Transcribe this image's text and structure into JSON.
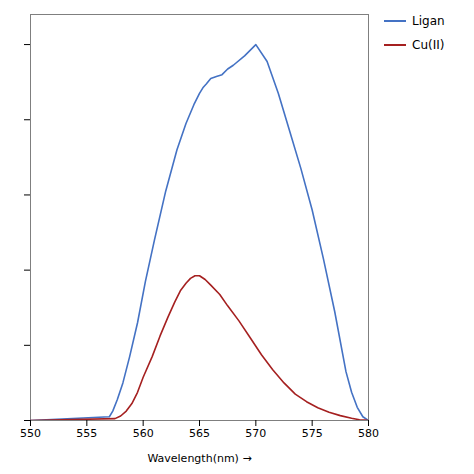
{
  "chart_data": {
    "type": "line",
    "xlabel": "Wavelength(nm)",
    "xlim": [
      550,
      580
    ],
    "xticks": [
      550,
      555,
      560,
      565,
      570,
      575,
      580
    ],
    "ylim": [
      0,
      1.08
    ],
    "yticks": [
      0,
      0.2,
      0.4,
      0.6,
      0.8,
      1.0
    ],
    "tick_labels": "x",
    "grid": false,
    "legend": "right",
    "series": [
      {
        "name": "Ligan",
        "color": "#4472C4",
        "x": [
          550.0,
          557.0,
          557.3,
          557.7,
          558.2,
          558.8,
          559.5,
          560.2,
          561.0,
          562.0,
          563.0,
          563.8,
          564.5,
          565.0,
          565.3,
          565.6,
          566.0,
          566.5,
          567.0,
          567.5,
          568.0,
          569.0,
          570.0,
          571.0,
          572.0,
          573.0,
          574.0,
          575.0,
          576.0,
          577.0,
          578.0,
          578.5,
          579.0,
          579.5,
          580.0
        ],
        "values": [
          0.0,
          0.01,
          0.025,
          0.055,
          0.1,
          0.17,
          0.26,
          0.37,
          0.48,
          0.61,
          0.72,
          0.79,
          0.84,
          0.87,
          0.885,
          0.895,
          0.91,
          0.915,
          0.92,
          0.935,
          0.945,
          0.97,
          1.0,
          0.955,
          0.87,
          0.77,
          0.67,
          0.56,
          0.43,
          0.29,
          0.13,
          0.075,
          0.035,
          0.01,
          0.0
        ]
      },
      {
        "name": "Cu(II)",
        "color": "#A52020",
        "x": [
          550.0,
          557.5,
          558.0,
          558.5,
          559.0,
          559.5,
          560.0,
          560.8,
          561.5,
          562.2,
          562.8,
          563.3,
          563.8,
          564.2,
          564.6,
          565.0,
          565.5,
          566.0,
          566.8,
          567.5,
          568.5,
          569.5,
          570.5,
          571.5,
          572.5,
          573.5,
          574.5,
          575.5,
          576.5,
          577.5,
          578.5,
          579.2,
          579.7,
          580.0
        ],
        "values": [
          0.0,
          0.005,
          0.012,
          0.025,
          0.045,
          0.075,
          0.115,
          0.17,
          0.225,
          0.275,
          0.315,
          0.345,
          0.365,
          0.378,
          0.385,
          0.385,
          0.375,
          0.36,
          0.335,
          0.305,
          0.265,
          0.22,
          0.175,
          0.135,
          0.1,
          0.07,
          0.05,
          0.034,
          0.022,
          0.013,
          0.006,
          0.002,
          0.001,
          0.0
        ]
      }
    ]
  }
}
